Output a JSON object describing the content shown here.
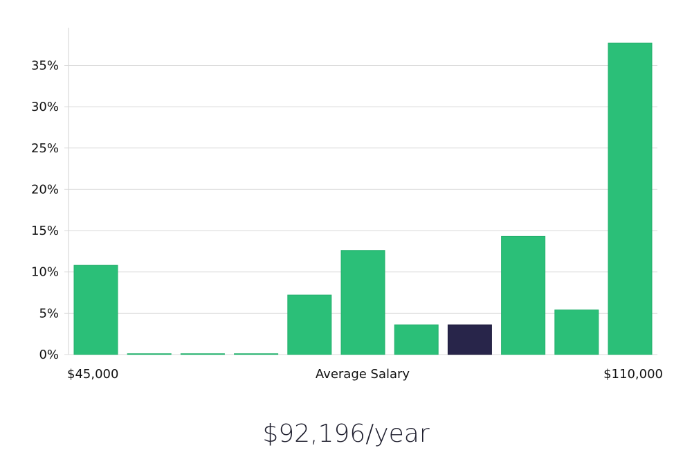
{
  "summary_text": "$92,196/year",
  "colors": {
    "bar": "#2bbf78",
    "bar_highlight": "#28254a",
    "grid": "#d9d9d9",
    "axis": "#d0d0d0"
  },
  "chart_data": {
    "type": "bar",
    "title": "",
    "xlabel": "Average Salary",
    "ylabel": "",
    "x_range_labels": {
      "min": "$45,000",
      "max": "$110,000"
    },
    "y_tick_values": [
      0,
      5,
      10,
      15,
      20,
      25,
      30,
      35
    ],
    "y_tick_labels": [
      "0%",
      "5%",
      "10%",
      "15%",
      "20%",
      "25%",
      "30%",
      "35%"
    ],
    "ylim": [
      0,
      39
    ],
    "values": [
      10.8,
      0.1,
      0.1,
      0.1,
      7.2,
      12.6,
      3.6,
      3.6,
      14.3,
      5.4,
      37.7
    ],
    "highlight_index": 7,
    "grid": true
  }
}
